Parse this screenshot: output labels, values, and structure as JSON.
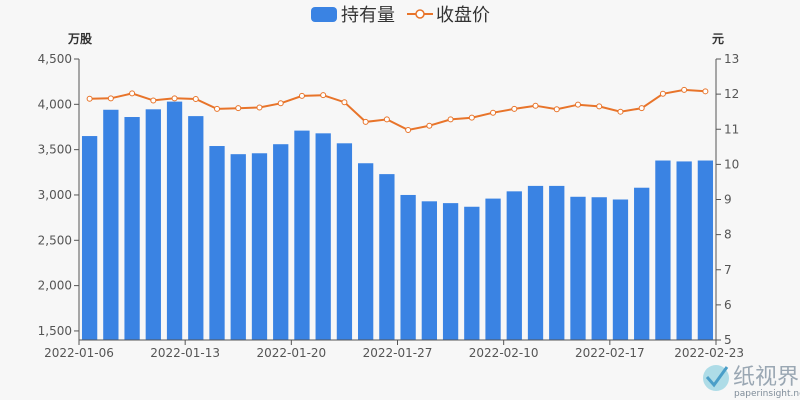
{
  "chart_data": {
    "type": "bar+line",
    "legend": [
      {
        "name": "持有量",
        "type": "bar",
        "color": "#3a83e3"
      },
      {
        "name": "收盘价",
        "type": "line",
        "color": "#e8742a"
      }
    ],
    "left_axis": {
      "unit": "万股",
      "min": 1400,
      "max": 4500,
      "ticks": [
        1500,
        2000,
        2500,
        3000,
        3500,
        4000,
        4500
      ],
      "tick_labels": [
        "1,500",
        "2,000",
        "2,500",
        "3,000",
        "3,500",
        "4,000",
        "4,500"
      ]
    },
    "right_axis": {
      "unit": "元",
      "min": 5,
      "max": 13,
      "ticks": [
        5,
        6,
        7,
        8,
        9,
        10,
        11,
        12,
        13
      ],
      "tick_labels": [
        "5",
        "6",
        "7",
        "8",
        "9",
        "10",
        "11",
        "12",
        "13"
      ]
    },
    "x_tick_labels": [
      "2022-01-06",
      "2022-01-13",
      "2022-01-20",
      "2022-01-27",
      "2022-02-10",
      "2022-02-17",
      "2022-02-23"
    ],
    "x_tick_indices": [
      0,
      5,
      10,
      15,
      20,
      25,
      30
    ],
    "series": [
      {
        "name": "持有量",
        "axis": "left",
        "values": [
          3650,
          3940,
          3860,
          3945,
          4030,
          3870,
          3540,
          3450,
          3460,
          3560,
          3710,
          3680,
          3570,
          3350,
          3230,
          3000,
          2930,
          2910,
          2870,
          2960,
          3040,
          3100,
          3100,
          2980,
          2975,
          2950,
          3080,
          3380,
          3370,
          3380
        ]
      },
      {
        "name": "收盘价",
        "axis": "right",
        "values": [
          11.87,
          11.88,
          12.02,
          11.82,
          11.88,
          11.86,
          11.58,
          11.6,
          11.62,
          11.74,
          11.95,
          11.97,
          11.77,
          11.21,
          11.28,
          10.98,
          11.1,
          11.28,
          11.33,
          11.47,
          11.58,
          11.67,
          11.57,
          11.7,
          11.65,
          11.5,
          11.6,
          12.01,
          12.12,
          12.08
        ]
      }
    ]
  },
  "watermark": {
    "text": "纸视界",
    "url": "paperinsight.net"
  }
}
